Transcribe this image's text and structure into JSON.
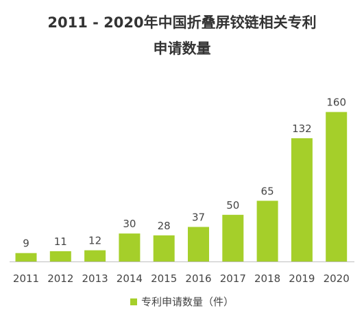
{
  "chart_data": {
    "type": "bar",
    "title": [
      "2011 - 2020年中国折叠屏铰链相关专利",
      "申请数量"
    ],
    "categories": [
      "2011",
      "2012",
      "2013",
      "2014",
      "2015",
      "2016",
      "2017",
      "2018",
      "2019",
      "2020"
    ],
    "series": [
      {
        "name": "专利申请数量（件）",
        "values": [
          9,
          11,
          12,
          30,
          28,
          37,
          50,
          65,
          132,
          160
        ],
        "color": "#a5cf2a"
      }
    ],
    "ylim": [
      0,
      170
    ],
    "grid": false,
    "legend": "bottom-center",
    "data_labels": true
  }
}
